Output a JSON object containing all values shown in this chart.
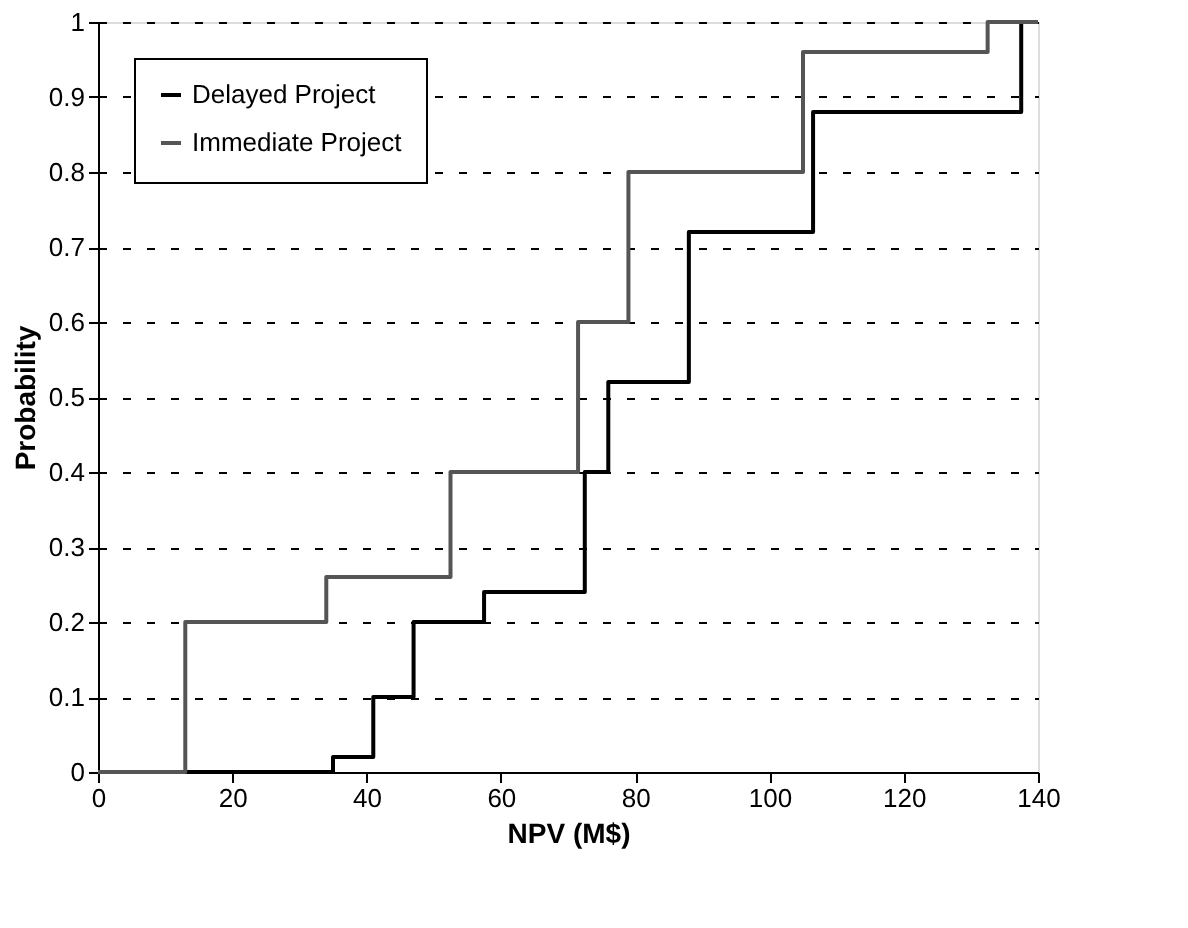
{
  "chart_data": {
    "type": "step",
    "xlabel": "NPV (M$)",
    "ylabel": "Probability",
    "xlim": [
      0,
      140
    ],
    "xticks": [
      0,
      20,
      40,
      60,
      80,
      100,
      120,
      140
    ],
    "ylim": [
      0,
      1
    ],
    "yticks": [
      0,
      0.1,
      0.2,
      0.3,
      0.4,
      0.5,
      0.6,
      0.7,
      0.8,
      0.9,
      1
    ],
    "grid": "y",
    "legend": "top left",
    "marker": "none",
    "line_style": "solid",
    "series": [
      {
        "name": "Delayed Project",
        "color": "#000000",
        "x": [
          0,
          35,
          41,
          47,
          57.5,
          72.5,
          76,
          88,
          106.5,
          137.5,
          140
        ],
        "values": [
          0,
          0.02,
          0.1,
          0.2,
          0.24,
          0.4,
          0.52,
          0.72,
          0.88,
          1,
          1
        ]
      },
      {
        "name": "Immediate Project",
        "color": "#555555",
        "x": [
          0,
          13,
          34,
          52.5,
          71.5,
          79,
          105,
          132.5,
          140
        ],
        "values": [
          0,
          0.2,
          0.26,
          0.4,
          0.6,
          0.8,
          0.96,
          1,
          1
        ]
      }
    ]
  }
}
